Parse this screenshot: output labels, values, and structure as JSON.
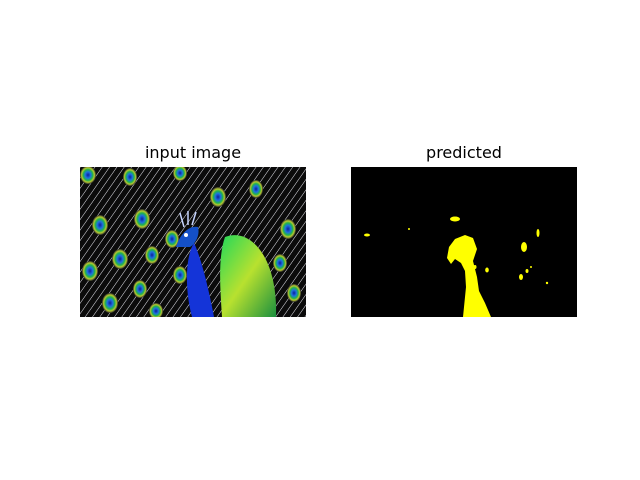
{
  "figure": {
    "left_panel": {
      "title": "input image"
    },
    "right_panel": {
      "title": "predicted"
    }
  },
  "colors": {
    "mask_background": "#000000",
    "mask_foreground": "#ffff00",
    "peacock_body": "#1434d8",
    "peacock_feather": "#12a63c",
    "peacock_eye": "#1450c8"
  }
}
